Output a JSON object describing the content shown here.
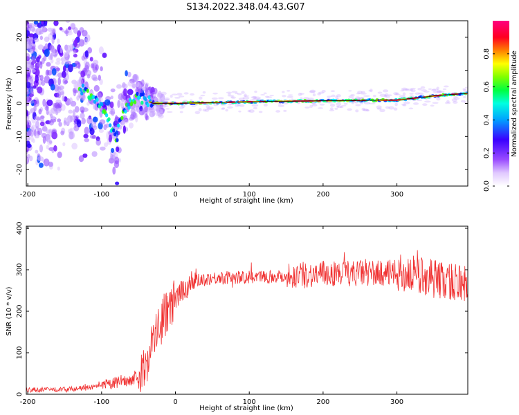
{
  "title": "S134.2022.348.04.43.G07",
  "chart_data": [
    {
      "type": "heatmap",
      "xlabel": "Height of straight line (km)",
      "ylabel": "Frequency (Hz)",
      "xlim": [
        -202,
        396
      ],
      "ylim": [
        -25,
        25
      ],
      "xticks": [
        -200,
        -100,
        0,
        100,
        200,
        300
      ],
      "yticks": [
        -20,
        -10,
        0,
        10,
        20
      ],
      "colorbar": {
        "label": "Normalized spectral amplitude",
        "ticks": [
          "0.0",
          "0.2",
          "0.4",
          "0.6",
          "0.8"
        ],
        "range": [
          0,
          1
        ]
      },
      "trend": {
        "x": [
          -200,
          -150,
          -125,
          -110,
          -95,
          -85,
          -80,
          -75,
          -70,
          -60,
          -50,
          -40,
          -30,
          0,
          100,
          200,
          300,
          320,
          340,
          360,
          380,
          396
        ],
        "y": [
          6,
          7,
          4,
          2,
          -3,
          -8,
          -12,
          -5,
          -3,
          1,
          2,
          1,
          0,
          0,
          0.5,
          0.8,
          1,
          1.5,
          2,
          2.5,
          2.8,
          3
        ]
      },
      "grid": false
    },
    {
      "type": "line",
      "xlabel": "Height of straight line (km)",
      "ylabel": "SNR (10 * v/v)",
      "xlim": [
        -202,
        396
      ],
      "ylim": [
        0,
        405
      ],
      "xticks": [
        -200,
        -100,
        0,
        100,
        200,
        300
      ],
      "yticks": [
        0,
        100,
        200,
        300,
        400
      ],
      "series": [
        {
          "color": "#f03030",
          "x": [
            -202,
            -150,
            -120,
            -100,
            -80,
            -60,
            -45,
            -40,
            -35,
            -30,
            -25,
            -20,
            -15,
            -10,
            0,
            10,
            20,
            30,
            50,
            100,
            150,
            200,
            250,
            300,
            320,
            340,
            360,
            380,
            396
          ],
          "y": [
            10,
            12,
            15,
            20,
            28,
            35,
            45,
            70,
            110,
            130,
            150,
            170,
            190,
            200,
            225,
            250,
            268,
            275,
            280,
            282,
            285,
            290,
            292,
            292,
            288,
            285,
            275,
            270,
            268
          ]
        }
      ],
      "grid": false
    }
  ]
}
